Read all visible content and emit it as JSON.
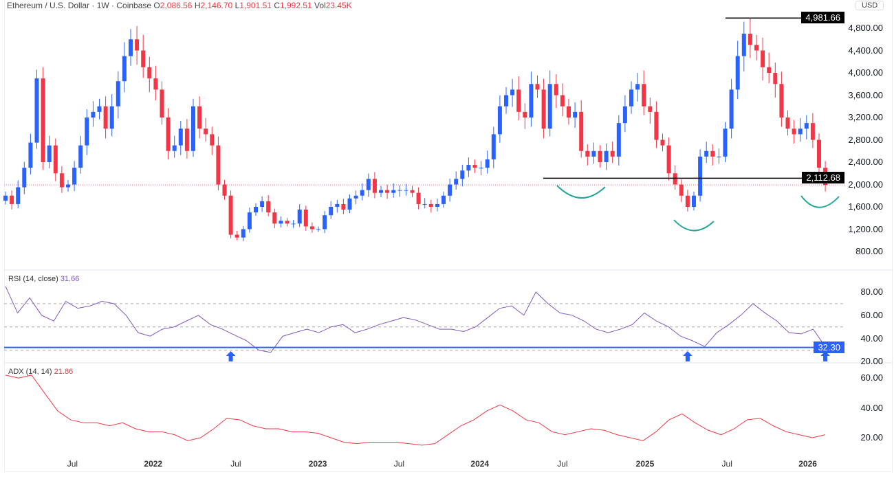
{
  "header": {
    "symbol": "Ethereum / U.S. Dollar · 1W · Coinbase",
    "o_label": "O",
    "o": "2,086.56",
    "h_label": "H",
    "h": "2,146.70",
    "l_label": "L",
    "l": "1,901.51",
    "c_label": "C",
    "c": "1,992.51",
    "vol_label": "Vol",
    "vol": "23.45K"
  },
  "currency": "USD",
  "colors": {
    "up": "#2962ff",
    "down": "#f23645",
    "rsi": "#7e57c2",
    "adx": "#f23645",
    "arc": "#26a69a",
    "level": "#000000",
    "rsi_line": "#2962ff"
  },
  "chart_data": [
    {
      "type": "candlestick",
      "title": "Ethereum / U.S. Dollar 1W",
      "interval": "2-week approximate closes",
      "ylim": [
        600,
        5000
      ],
      "yticks": [
        "800.00",
        "1,200.00",
        "1,600.00",
        "2,000.00",
        "2,400.00",
        "2,800.00",
        "3,200.00",
        "3,600.00",
        "4,000.00",
        "4,400.00",
        "4,800.00"
      ],
      "ytick_values": [
        800,
        1200,
        1600,
        2000,
        2400,
        2800,
        3200,
        3600,
        4000,
        4400,
        4800
      ],
      "xticks": [
        {
          "label": "Jul",
          "bold": false,
          "t": 10.7
        },
        {
          "label": "2022",
          "bold": true,
          "t": 23.6
        },
        {
          "label": "Jul",
          "bold": false,
          "t": 36.8
        },
        {
          "label": "2023",
          "bold": true,
          "t": 49.9
        },
        {
          "label": "Jul",
          "bold": false,
          "t": 62.9
        },
        {
          "label": "2024",
          "bold": true,
          "t": 75.8
        },
        {
          "label": "Jul",
          "bold": false,
          "t": 89
        },
        {
          "label": "2025",
          "bold": true,
          "t": 102.2
        },
        {
          "label": "Jul",
          "bold": false,
          "t": 115.3
        },
        {
          "label": "2026",
          "bold": true,
          "t": 128.2
        }
      ],
      "closes": [
        1800,
        1650,
        1950,
        2300,
        2750,
        3900,
        2400,
        2700,
        2200,
        1950,
        2000,
        2300,
        2700,
        3200,
        3300,
        3400,
        3000,
        3400,
        3850,
        4300,
        4600,
        4400,
        4100,
        3900,
        3700,
        3200,
        2600,
        2700,
        3000,
        2600,
        3400,
        3000,
        2900,
        2700,
        2000,
        1800,
        1100,
        1050,
        1200,
        1500,
        1600,
        1700,
        1500,
        1300,
        1350,
        1300,
        1300,
        1550,
        1250,
        1200,
        1200,
        1450,
        1600,
        1650,
        1550,
        1750,
        1800,
        1900,
        2100,
        1850,
        1900,
        1850,
        1900,
        1900,
        1900,
        1850,
        1650,
        1650,
        1600,
        1650,
        1800,
        2000,
        2100,
        2250,
        2350,
        2300,
        2300,
        2450,
        2900,
        3400,
        3600,
        3700,
        3300,
        3200,
        3800,
        3700,
        3000,
        3800,
        3600,
        3400,
        3200,
        3300,
        2600,
        2500,
        2600,
        2400,
        2600,
        2500,
        3100,
        3400,
        3700,
        3800,
        3400,
        3300,
        2800,
        2700,
        2200,
        2000,
        1800,
        1600,
        1800,
        2500,
        2600,
        2500,
        2500,
        3000,
        3700,
        4300,
        4700,
        4500,
        4400,
        4100,
        4000,
        3800,
        3200,
        3000,
        2900,
        3000,
        3100,
        2800,
        2300,
        1990
      ],
      "levels": [
        {
          "value": 4981.66,
          "label": "4,981.66"
        },
        {
          "value": 2112.68,
          "label": "2,112.68"
        }
      ],
      "current_price": 1992.51,
      "annotations": [
        {
          "type": "arc",
          "t": [
            88,
            96
          ]
        },
        {
          "type": "arc",
          "t": [
            107,
            113
          ]
        },
        {
          "type": "arc",
          "t": [
            127,
            133
          ]
        }
      ]
    },
    {
      "type": "line",
      "title": "RSI",
      "label": "RSI (14, close)",
      "value": "31.66",
      "ylim": [
        20,
        85
      ],
      "yticks": [
        "20.00",
        "40.00",
        "60.00",
        "80.00"
      ],
      "ytick_values": [
        20,
        40,
        60,
        80
      ],
      "bands": [
        70,
        50,
        30
      ],
      "level": {
        "value": 32.3,
        "label": "32.30"
      },
      "arrows_t": [
        36,
        109,
        131
      ],
      "values": [
        85,
        62,
        75,
        60,
        55,
        72,
        66,
        68,
        72,
        70,
        60,
        45,
        42,
        48,
        50,
        55,
        60,
        52,
        48,
        43,
        38,
        30,
        28,
        42,
        45,
        48,
        45,
        50,
        52,
        45,
        48,
        52,
        55,
        58,
        56,
        52,
        48,
        48,
        46,
        50,
        58,
        66,
        68,
        60,
        80,
        70,
        62,
        60,
        55,
        48,
        45,
        48,
        52,
        62,
        55,
        50,
        42,
        38,
        33,
        45,
        52,
        60,
        70,
        62,
        55,
        45,
        44,
        48,
        33
      ]
    },
    {
      "type": "line",
      "title": "ADX",
      "label": "ADX (14, 14)",
      "value": "21.86",
      "ylim": [
        10,
        65
      ],
      "yticks": [
        "20.00",
        "40.00",
        "60.00"
      ],
      "ytick_values": [
        20,
        40,
        60
      ],
      "values": [
        62,
        60,
        62,
        50,
        38,
        32,
        30,
        30,
        28,
        30,
        26,
        24,
        24,
        22,
        18,
        20,
        26,
        33,
        32,
        28,
        26,
        26,
        24,
        24,
        23,
        20,
        17,
        16,
        17,
        17,
        17,
        16,
        15,
        16,
        22,
        28,
        32,
        38,
        42,
        38,
        32,
        30,
        24,
        22,
        24,
        26,
        25,
        22,
        20,
        18,
        24,
        32,
        36,
        30,
        25,
        22,
        26,
        32,
        33,
        28,
        24,
        22,
        20,
        22
      ]
    }
  ]
}
